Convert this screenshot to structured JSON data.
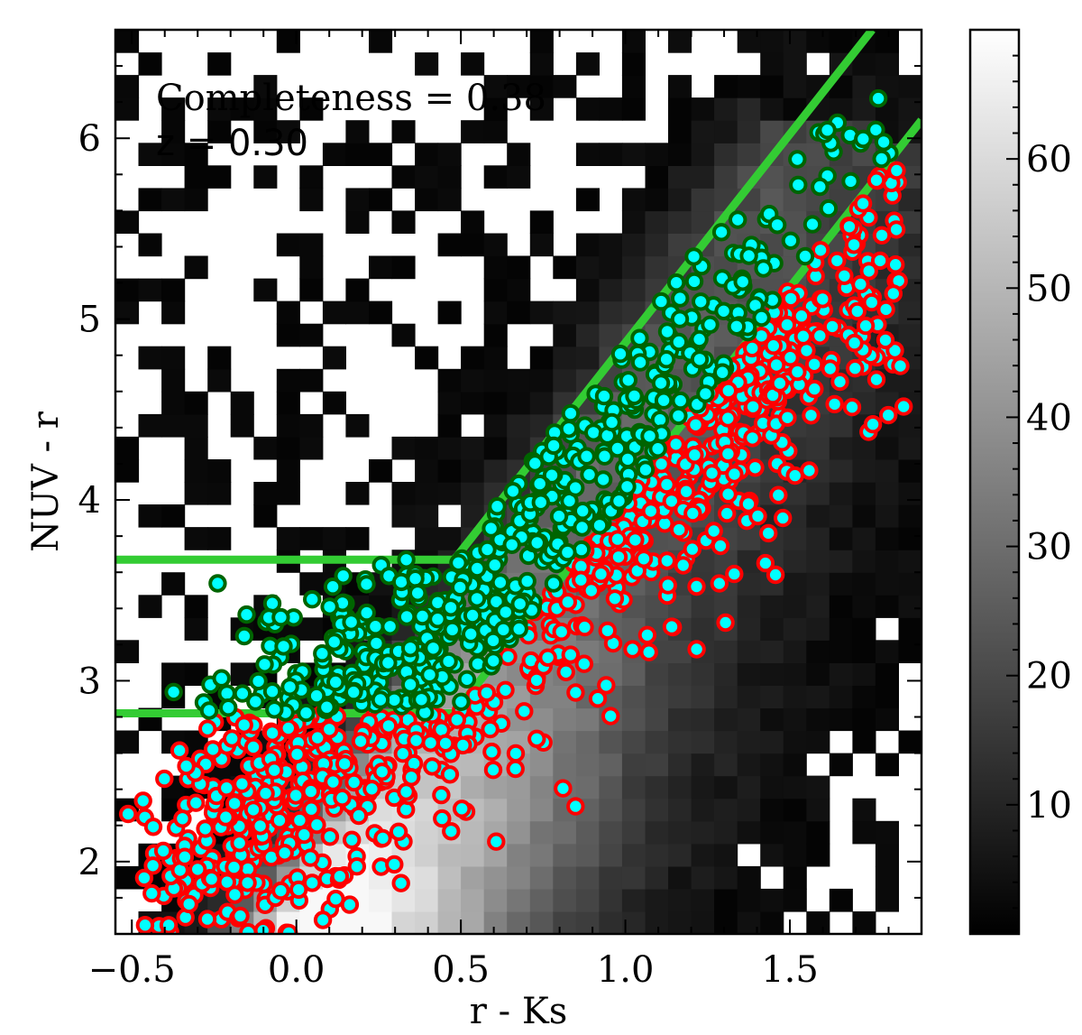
{
  "chart_data": {
    "type": "scatter",
    "title": "",
    "xlabel": "r - Ks",
    "ylabel": "NUV - r",
    "xlim": [
      -0.55,
      1.9
    ],
    "ylim": [
      1.6,
      6.6
    ],
    "xticks": [
      -0.5,
      0.0,
      0.5,
      1.0,
      1.5
    ],
    "xtick_labels": [
      "−0.5",
      "0.0",
      "0.5",
      "1.0",
      "1.5"
    ],
    "yticks": [
      2,
      3,
      4,
      5,
      6
    ],
    "ytick_labels": [
      "2",
      "3",
      "4",
      "5",
      "6"
    ],
    "annotations": [
      {
        "text": "Completeness = 0.38",
        "x": -0.5,
        "y": 6.25
      },
      {
        "text": "z = 0.30",
        "x": -0.5,
        "y": 5.97
      }
    ],
    "background": {
      "type": "heatmap",
      "colormap": "gray",
      "bin_width": 0.07,
      "bin_height": 0.125,
      "colorbar": {
        "ticks": [
          10,
          20,
          30,
          40,
          50,
          60
        ],
        "min": 0,
        "max": 70
      },
      "ridge": {
        "from": [
          0.1,
          1.8
        ],
        "to": [
          1.5,
          5.9
        ],
        "peak_counts": 68
      }
    },
    "selection_lines": [
      {
        "name": "upper",
        "color": "#33cc33",
        "points": [
          [
            -0.55,
            3.67
          ],
          [
            0.48,
            3.67
          ],
          [
            1.75,
            6.6
          ]
        ]
      },
      {
        "name": "lower",
        "color": "#33cc33",
        "points": [
          [
            -0.55,
            2.82
          ],
          [
            0.48,
            2.82
          ],
          [
            1.9,
            6.1
          ]
        ]
      }
    ],
    "series": [
      {
        "kind": "inside-selection",
        "edge_color": "#006400",
        "fill_color": "#00ffff",
        "count": 520
      },
      {
        "kind": "outside-selection",
        "edge_color": "#ff0000",
        "fill_color": "#00ffff",
        "count": 820
      }
    ],
    "grid": false,
    "legend": "none"
  }
}
